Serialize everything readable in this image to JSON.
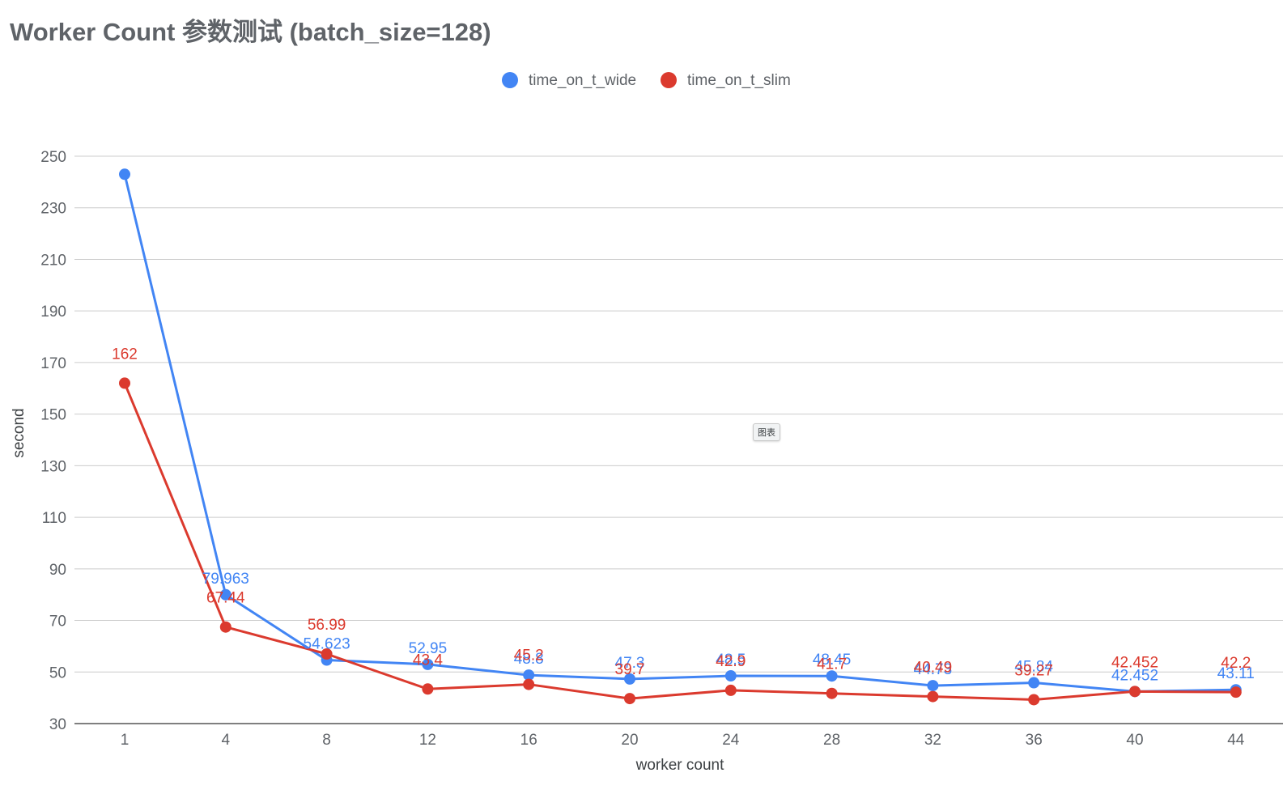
{
  "chart_data": {
    "type": "line",
    "title": "Worker Count 参数测试 (batch_size=128)",
    "xlabel": "worker count",
    "ylabel": "second",
    "categories": [
      "1",
      "4",
      "8",
      "12",
      "16",
      "20",
      "24",
      "28",
      "32",
      "36",
      "40",
      "44"
    ],
    "ylim": [
      30,
      250
    ],
    "yticks": [
      30,
      50,
      70,
      90,
      110,
      130,
      150,
      170,
      190,
      210,
      230,
      250
    ],
    "grid": true,
    "legend_position": "top",
    "series": [
      {
        "name": "time_on_t_wide",
        "color": "#4285f4",
        "values": [
          243,
          79.963,
          54.623,
          52.95,
          48.8,
          47.3,
          48.5,
          48.45,
          44.73,
          45.84,
          42.452,
          43.11
        ],
        "labels": [
          "",
          "79.963",
          "54.623",
          "52.95",
          "48.8",
          "47.3",
          "48.5",
          "48.45",
          "44.73",
          "45.84",
          "42.452",
          "43.11"
        ]
      },
      {
        "name": "time_on_t_slim",
        "color": "#db3a2e",
        "values": [
          162,
          67.44,
          56.99,
          43.4,
          45.2,
          39.7,
          42.9,
          41.7,
          40.49,
          39.27,
          42.452,
          42.2
        ],
        "labels": [
          "162",
          "67.44",
          "56.99",
          "43.4",
          "45.2",
          "39.7",
          "42.9",
          "41.7",
          "40.49",
          "39.27",
          "42.452",
          "42.2"
        ]
      }
    ]
  },
  "tooltip_chip": "图表"
}
